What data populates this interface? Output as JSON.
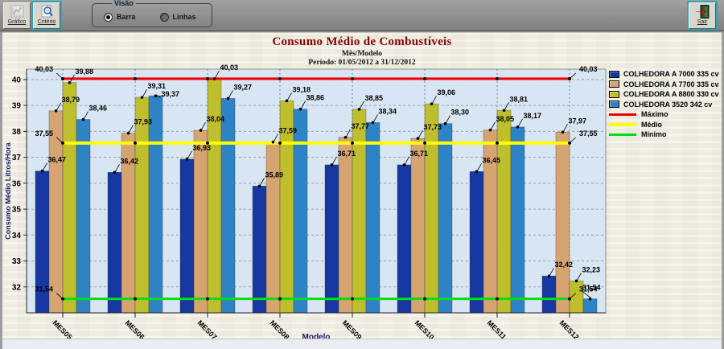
{
  "toolbar": {
    "grafico_label": "Gráfico",
    "criterio_label": "Critério",
    "visao_label": "Visão",
    "radio_barra": "Barra",
    "radio_linhas": "Linhas",
    "sair_label": "Sair"
  },
  "chart_data": {
    "type": "bar",
    "title": "Consumo Médio de Combustíveis",
    "subtitle1": "Mês/Modelo",
    "subtitle2": "Período: 01/05/2012 a 31/12/2012",
    "xlabel": "Modelo",
    "ylabel": "Consumo Médio Litros/Hora",
    "categories": [
      "MES05",
      "MES06",
      "MES07",
      "MES08",
      "MES09",
      "MES10",
      "MES11",
      "MES12"
    ],
    "series": [
      {
        "name": "COLHEDORA A 7000 335 cv",
        "color": "#1638a0",
        "values": [
          36.47,
          36.42,
          36.93,
          35.89,
          36.71,
          36.71,
          36.45,
          32.42
        ]
      },
      {
        "name": "COLHEDORA A 7700 335 cv",
        "color": "#d5a471",
        "values": [
          38.79,
          37.93,
          38.04,
          37.59,
          37.77,
          37.73,
          38.05,
          37.97
        ]
      },
      {
        "name": "COLHEDORA A 8800 330 cv",
        "color": "#bfbf2e",
        "values": [
          39.88,
          39.31,
          40.03,
          39.18,
          38.85,
          39.06,
          38.81,
          32.23
        ]
      },
      {
        "name": "COLHEDORA 3520 342 cv",
        "color": "#2e83c6",
        "values": [
          38.46,
          39.37,
          39.27,
          38.86,
          38.34,
          38.3,
          38.17,
          31.54
        ]
      }
    ],
    "lines": [
      {
        "name": "Máximo",
        "color": "#ee0000",
        "value": 40.03
      },
      {
        "name": "Médio",
        "color": "#ffff00",
        "value": 37.55
      },
      {
        "name": "Mínimo",
        "color": "#00dd11",
        "value": 31.54
      }
    ],
    "yticks": [
      32,
      33,
      34,
      35,
      36,
      37,
      38,
      39,
      40
    ],
    "ylim": [
      31.0,
      40.4
    ],
    "decimal_comma": true,
    "legend_position": "right",
    "grid": true,
    "plot_bg": "#d8e5f2"
  }
}
